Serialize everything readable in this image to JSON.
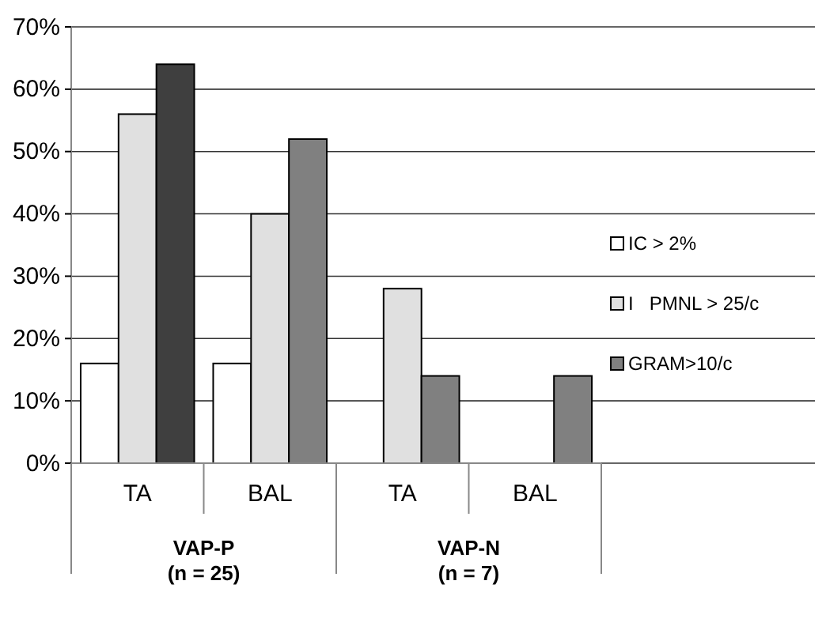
{
  "chart_data": {
    "type": "bar",
    "categories": [
      "TA",
      "BAL",
      "TA",
      "BAL"
    ],
    "series": [
      {
        "name": "IC > 2%",
        "color": "#ffffff",
        "values": [
          16,
          16,
          0,
          0
        ]
      },
      {
        "name": "I   PMNL > 25/c",
        "color": "#e0e0e0",
        "values": [
          56,
          40,
          28,
          0
        ]
      },
      {
        "name": "GRAM>10/c",
        "color": "#808080",
        "colors": [
          "#3f3f3f",
          "#808080",
          "#808080",
          "#808080"
        ],
        "values": [
          64,
          52,
          14,
          14
        ]
      }
    ],
    "ylim": [
      0,
      70
    ],
    "yticks": [
      {
        "value": 0,
        "label": "0%"
      },
      {
        "value": 10,
        "label": "10%"
      },
      {
        "value": 20,
        "label": "20%"
      },
      {
        "value": 30,
        "label": "30%"
      },
      {
        "value": 40,
        "label": "40%"
      },
      {
        "value": 50,
        "label": "50%"
      },
      {
        "value": 60,
        "label": "60%"
      },
      {
        "value": 70,
        "label": "70%"
      }
    ],
    "grid": "y",
    "legend": "right",
    "annotations": [
      "VAP-P\n(n = 25)",
      "VAP-N\n(n = 7)"
    ]
  }
}
